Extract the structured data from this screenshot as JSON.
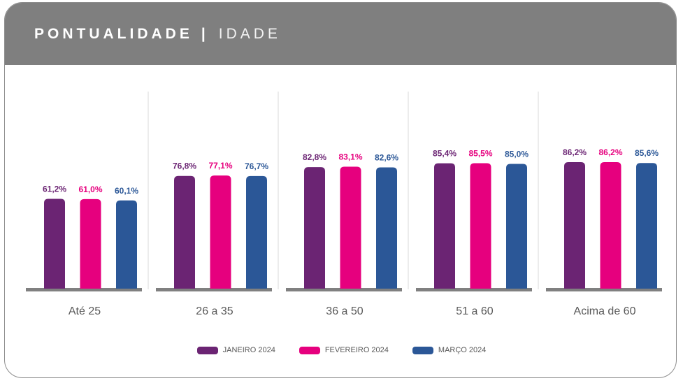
{
  "header": {
    "title": "PONTUALIDADE",
    "separator": "|",
    "subtitle": "IDADE"
  },
  "chart_data": {
    "type": "bar",
    "categories": [
      "Até 25",
      "26 a 35",
      "36 a 50",
      "51 a 60",
      "Acima de 60"
    ],
    "series": [
      {
        "name": "JANEIRO 2024",
        "color": "#6b2473",
        "values": [
          61.2,
          76.8,
          82.8,
          85.4,
          86.2
        ],
        "labels": [
          "61,2%",
          "76,8%",
          "82,8%",
          "85,4%",
          "86,2%"
        ]
      },
      {
        "name": "FEVEREIRO 2024",
        "color": "#e6007e",
        "values": [
          61.0,
          77.1,
          83.1,
          85.5,
          86.2
        ],
        "labels": [
          "61,0%",
          "77,1%",
          "83,1%",
          "85,5%",
          "86,2%"
        ]
      },
      {
        "name": "MARÇO 2024",
        "color": "#2b5797",
        "values": [
          60.1,
          76.7,
          82.6,
          85.0,
          85.6
        ],
        "labels": [
          "60,1%",
          "76,7%",
          "82,6%",
          "85,0%",
          "85,6%"
        ]
      }
    ],
    "ylim": [
      0,
      100
    ],
    "grid": false,
    "legend_position": "bottom-center"
  }
}
